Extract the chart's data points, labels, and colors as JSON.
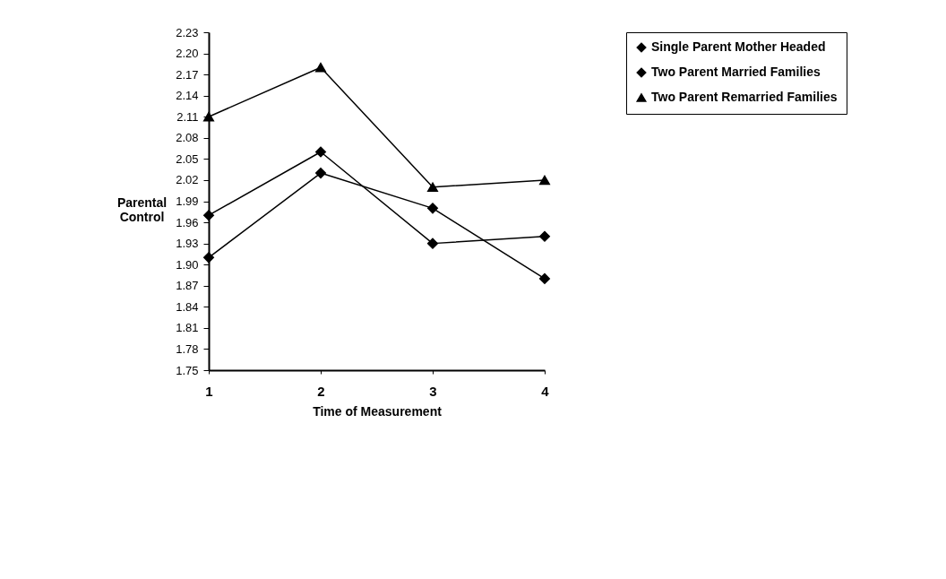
{
  "chart_data": {
    "type": "line",
    "xlabel": "Time of Measurement",
    "ylabel": "Parental Control",
    "x": [
      1,
      2,
      3,
      4
    ],
    "xlim": [
      1,
      4
    ],
    "xticks": [
      1,
      2,
      3,
      4
    ],
    "ylim": [
      1.75,
      2.23
    ],
    "yticks": [
      1.75,
      1.78,
      1.81,
      1.84,
      1.87,
      {
        "value": 1.9,
        "label": "1.90"
      },
      1.93,
      1.96,
      1.99,
      2.02,
      2.05,
      2.08,
      2.11,
      2.14,
      2.17,
      {
        "value": 2.2,
        "label": "2.20"
      },
      2.23
    ],
    "grid": false,
    "legend": "top right",
    "series": [
      {
        "name": "Single Parent Mother Headed",
        "color": "#000000",
        "marker": "diamond",
        "values": [
          1.91,
          2.03,
          1.98,
          1.88
        ]
      },
      {
        "name": "Two Parent Married Families",
        "color": "#000000",
        "marker": "diamond",
        "values": [
          1.97,
          2.06,
          1.93,
          1.94
        ]
      },
      {
        "name": "Two Parent Remarried Families",
        "color": "#000000",
        "marker": "triangle",
        "values": [
          2.11,
          2.18,
          2.01,
          2.02
        ]
      }
    ]
  }
}
